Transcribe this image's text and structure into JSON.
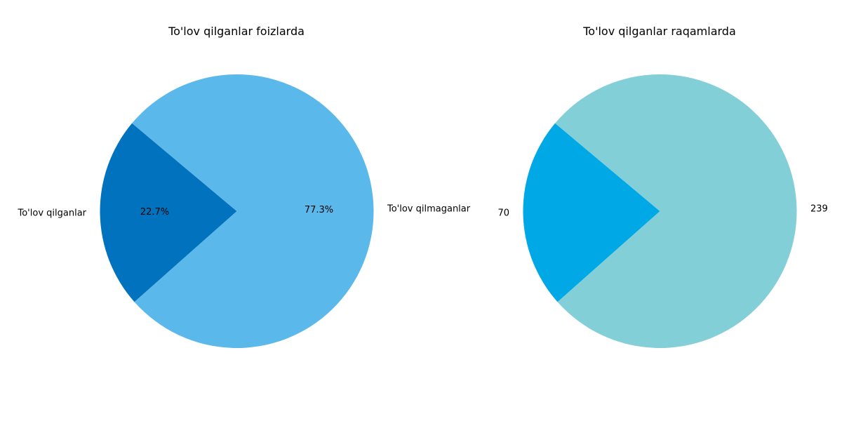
{
  "chart_data": [
    {
      "type": "pie",
      "title": "To'lov qilganlar foizlarda",
      "slices": [
        {
          "label": "To'lov qilganlar",
          "value": 70,
          "autopct": "22.7%",
          "color": "#0173BE"
        },
        {
          "label": "To'lov qilmaganlar",
          "value": 239,
          "autopct": "77.3%",
          "color": "#5BB8EB"
        }
      ]
    },
    {
      "type": "pie",
      "title": "To'lov qilganlar raqamlarda",
      "slices": [
        {
          "label": "70",
          "value": 70,
          "color": "#00A8E6"
        },
        {
          "label": "239",
          "value": 239,
          "color": "#82CFD8"
        }
      ]
    }
  ]
}
